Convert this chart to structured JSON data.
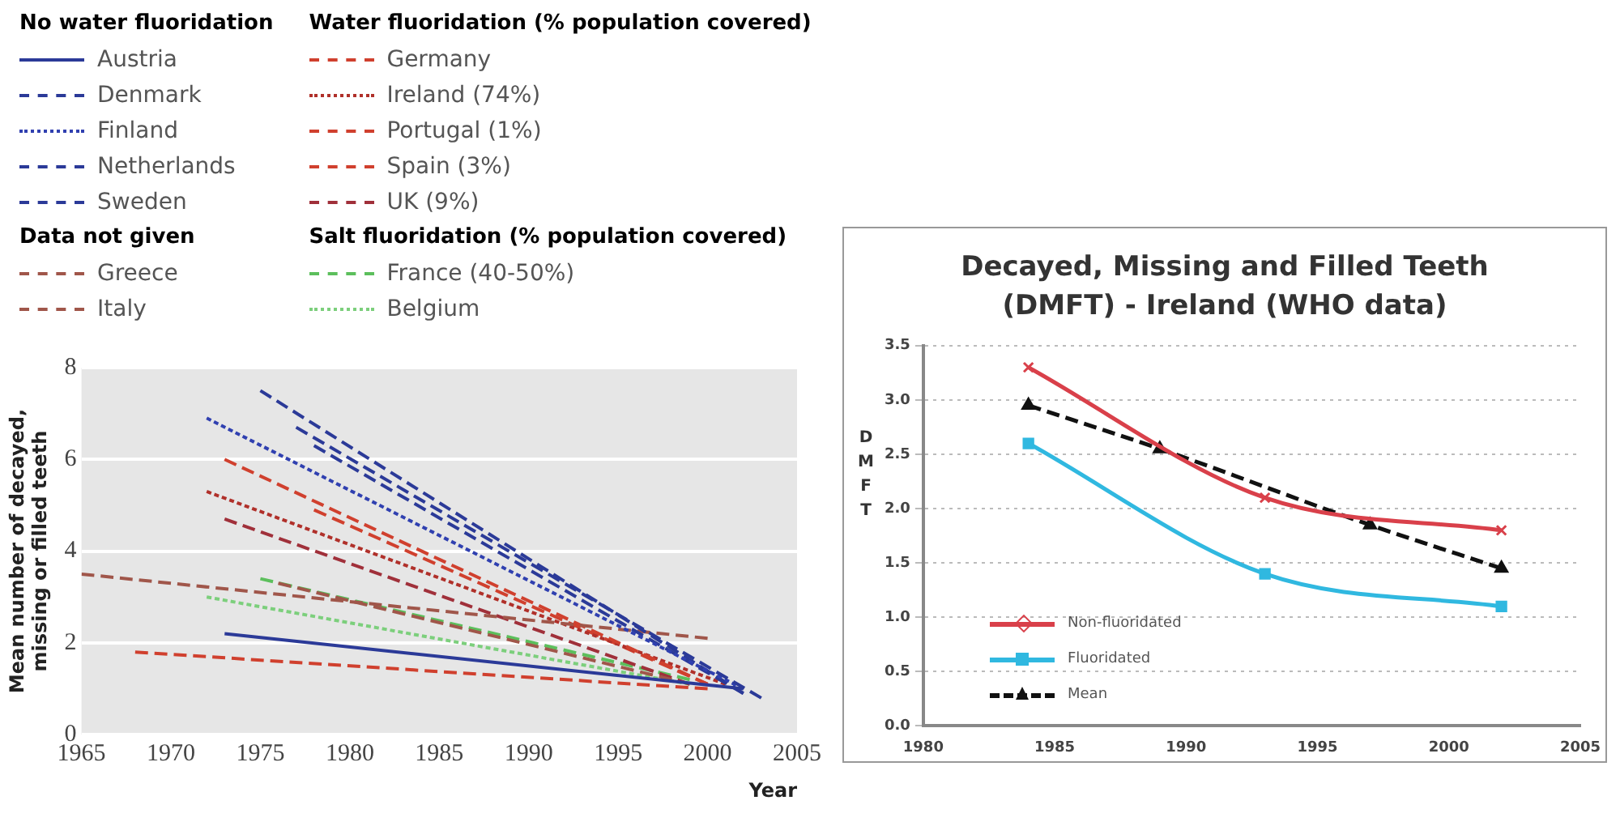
{
  "chart_data": [
    {
      "type": "line",
      "xlabel": "Year",
      "ylabel": "Mean number of decayed, missing or filled teeth",
      "xlim": [
        1965,
        2005
      ],
      "xticks": [
        1965,
        1970,
        1975,
        1980,
        1985,
        1990,
        1995,
        2000,
        2005
      ],
      "ylim": [
        0,
        8
      ],
      "yticks": [
        0,
        2,
        4,
        6,
        8
      ],
      "grid": "y",
      "legend": "top",
      "annotations": [
        "No water fluoridation",
        "Water fluoridation (% population covered)",
        "Data not given",
        "Salt fluoridation (% population covered)"
      ],
      "series": [
        {
          "name": "Austria",
          "color": "#2b3a98",
          "line_style": "solid",
          "x": [
            1973,
            2002
          ],
          "values": [
            2.2,
            1.0
          ]
        },
        {
          "name": "Denmark",
          "color": "#2b3a98",
          "line_style": "dashed",
          "x": [
            1977,
            2003
          ],
          "values": [
            6.7,
            0.8
          ]
        },
        {
          "name": "Finland",
          "color": "#3040b0",
          "line_style": "dotted",
          "x": [
            1972,
            2002
          ],
          "values": [
            6.9,
            1.0
          ]
        },
        {
          "name": "Netherlands",
          "color": "#2b3a98",
          "line_style": "dashed",
          "x": [
            1975,
            2002
          ],
          "values": [
            7.5,
            0.9
          ]
        },
        {
          "name": "Sweden",
          "color": "#2b3a98",
          "line_style": "dashed",
          "x": [
            1978,
            2002
          ],
          "values": [
            6.3,
            0.9
          ]
        },
        {
          "name": "Greece",
          "color": "#a0564a",
          "line_style": "dashed",
          "x": [
            1965,
            2000
          ],
          "values": [
            3.5,
            2.1
          ]
        },
        {
          "name": "Italy",
          "color": "#a0564a",
          "line_style": "dashed",
          "x": [
            1976,
            1998
          ],
          "values": [
            3.3,
            1.2
          ]
        },
        {
          "name": "Germany",
          "color": "#d0402e",
          "line_style": "dashed",
          "x": [
            1973,
            2000
          ],
          "values": [
            6.0,
            1.1
          ]
        },
        {
          "name": "Ireland (74%)",
          "color": "#b0302a",
          "line_style": "dotted",
          "x": [
            1972,
            2001
          ],
          "values": [
            5.3,
            1.1
          ]
        },
        {
          "name": "Portugal (1%)",
          "color": "#d0402e",
          "line_style": "dashed",
          "x": [
            1968,
            2000
          ],
          "values": [
            1.8,
            1.0
          ]
        },
        {
          "name": "Spain (3%)",
          "color": "#d0402e",
          "line_style": "dashed",
          "x": [
            1978,
            2000
          ],
          "values": [
            4.9,
            1.1
          ]
        },
        {
          "name": "UK (9%)",
          "color": "#a0303a",
          "line_style": "dashed",
          "x": [
            1973,
            1999
          ],
          "values": [
            4.7,
            1.1
          ]
        },
        {
          "name": "France (40-50%)",
          "color": "#5cbf5c",
          "line_style": "dashed",
          "x": [
            1975,
            1999
          ],
          "values": [
            3.4,
            1.2
          ]
        },
        {
          "name": "Belgium",
          "color": "#7ccf7c",
          "line_style": "dotted",
          "x": [
            1972,
            1999
          ],
          "values": [
            3.0,
            1.1
          ]
        }
      ]
    },
    {
      "type": "line",
      "title": "Decayed, Missing and Filled Teeth (DMFT) - Ireland (WHO data)",
      "ylabel": "DMFT",
      "xlim": [
        1980,
        2005
      ],
      "xticks": [
        1980,
        1985,
        1990,
        1995,
        2000,
        2005
      ],
      "ylim": [
        0,
        3.5
      ],
      "yticks": [
        {
          "value": 0,
          "label": "0.0"
        },
        {
          "value": 0.5,
          "label": "0.5"
        },
        {
          "value": 1,
          "label": "1.0"
        },
        {
          "value": 1.5,
          "label": "1.5"
        },
        {
          "value": 2,
          "label": "2.0"
        },
        {
          "value": 2.5,
          "label": "2.5"
        },
        {
          "value": 3,
          "label": "3.0"
        },
        {
          "value": 3.5,
          "label": "3.5"
        }
      ],
      "grid": "y",
      "legend": "bottom left",
      "series": [
        {
          "name": "Non-fluoridated",
          "color": "#d9404a",
          "marker": "cross",
          "line_style": "solid",
          "x": [
            1984,
            1993,
            2002
          ],
          "values": [
            3.3,
            2.1,
            1.8
          ]
        },
        {
          "name": "Fluoridated",
          "color": "#30b8e0",
          "marker": "square",
          "line_style": "solid",
          "x": [
            1984,
            1993,
            2002
          ],
          "values": [
            2.6,
            1.4,
            1.1
          ]
        },
        {
          "name": "Mean",
          "color": "#111111",
          "marker": "triangle",
          "line_style": "dashed",
          "x": [
            1984,
            1989,
            1997,
            2002
          ],
          "values": [
            2.95,
            2.55,
            1.85,
            1.45
          ]
        }
      ]
    }
  ]
}
